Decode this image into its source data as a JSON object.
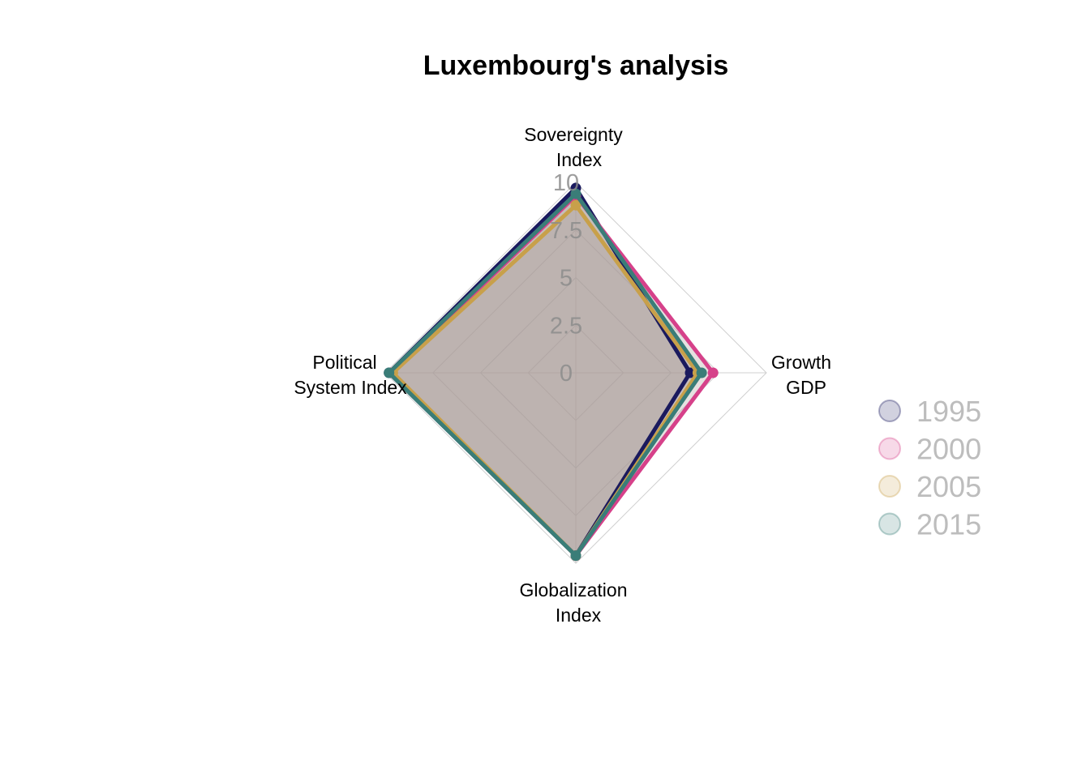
{
  "chart_data": {
    "type": "radar",
    "title": "Luxembourg's analysis",
    "axes": [
      [
        "Sovereignty",
        "Index"
      ],
      [
        "Growth",
        "GDP"
      ],
      [
        "Globalization",
        "Index"
      ],
      [
        "Political",
        "System Index"
      ]
    ],
    "range": [
      0,
      10
    ],
    "ticks": [
      "0",
      "2.5",
      "5",
      "7.5",
      "10"
    ],
    "tick_values": [
      0,
      2.5,
      5,
      7.5,
      10
    ],
    "grid": true,
    "legend_position": "right",
    "series": [
      {
        "name": "1995",
        "color": "#1a1a5e",
        "values": [
          9.7,
          6.0,
          9.6,
          9.8
        ]
      },
      {
        "name": "2000",
        "color": "#d6418a",
        "values": [
          9.3,
          7.2,
          9.6,
          9.7
        ]
      },
      {
        "name": "2005",
        "color": "#c8a04a",
        "values": [
          8.8,
          6.4,
          9.6,
          9.6
        ]
      },
      {
        "name": "2015",
        "color": "#3a7d78",
        "values": [
          9.4,
          6.6,
          9.6,
          9.8
        ]
      }
    ],
    "fill_color": "#a89a97"
  }
}
